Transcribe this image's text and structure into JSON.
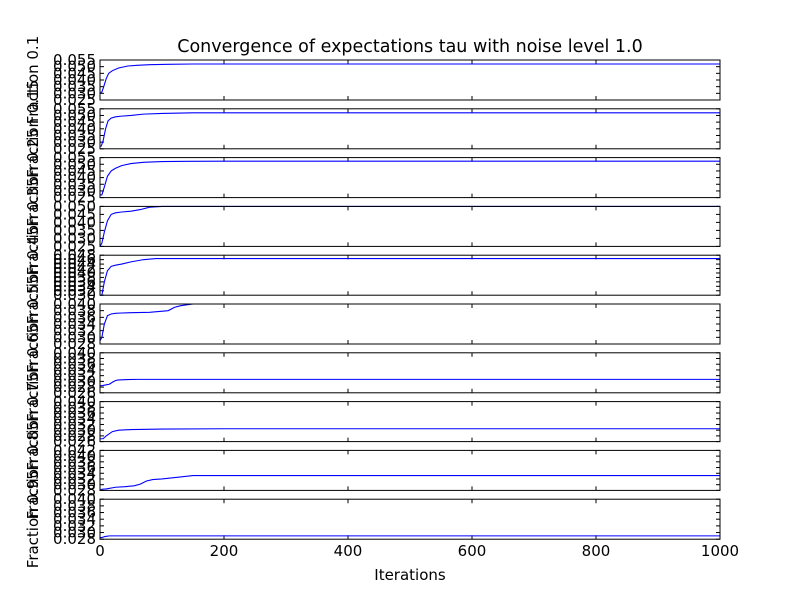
{
  "chart_data": {
    "type": "line",
    "title": "Convergence of expectations tau with noise level 1.0",
    "xlabel": "Iterations",
    "xlim": [
      0,
      1000
    ],
    "xticks": [
      0,
      200,
      400,
      600,
      800,
      1000
    ],
    "xtick_labels": [
      "0",
      "200",
      "400",
      "600",
      "800",
      "1000"
    ],
    "panels": [
      {
        "ylabel": "Fraction 0.1",
        "ylim": [
          0.025,
          0.055
        ],
        "yticks": [
          0.025,
          0.03,
          0.035,
          0.04,
          0.045,
          0.05,
          0.055
        ],
        "ytick_labels": [
          "0.025",
          "0.030",
          "0.035",
          "0.040",
          "0.045",
          "0.050",
          "0.055"
        ],
        "x": [
          0,
          3,
          6,
          10,
          14,
          20,
          30,
          45,
          60,
          80,
          110,
          150,
          250,
          1000
        ],
        "y": [
          0.03,
          0.031,
          0.035,
          0.041,
          0.045,
          0.047,
          0.049,
          0.0505,
          0.051,
          0.0515,
          0.0518,
          0.052,
          0.052,
          0.052
        ]
      },
      {
        "ylabel": "Fraction 0.15",
        "ylim": [
          0.025,
          0.055
        ],
        "yticks": [
          0.025,
          0.03,
          0.035,
          0.04,
          0.045,
          0.05,
          0.055
        ],
        "ytick_labels": [
          "0.025",
          "0.030",
          "0.035",
          "0.040",
          "0.045",
          "0.050",
          "0.055"
        ],
        "x": [
          0,
          2,
          5,
          9,
          13,
          18,
          25,
          35,
          50,
          70,
          100,
          150,
          250,
          1000
        ],
        "y": [
          0.027,
          0.027,
          0.031,
          0.04,
          0.046,
          0.048,
          0.049,
          0.0495,
          0.05,
          0.051,
          0.0515,
          0.052,
          0.052,
          0.052
        ]
      },
      {
        "ylabel": "Fraction 0.25",
        "ylim": [
          0.025,
          0.055
        ],
        "yticks": [
          0.025,
          0.03,
          0.035,
          0.04,
          0.045,
          0.05,
          0.055
        ],
        "ytick_labels": [
          "0.025",
          "0.030",
          "0.035",
          "0.040",
          "0.045",
          "0.050",
          "0.055"
        ],
        "x": [
          0,
          3,
          7,
          12,
          18,
          25,
          35,
          50,
          70,
          100,
          140,
          200,
          1000
        ],
        "y": [
          0.027,
          0.027,
          0.033,
          0.041,
          0.045,
          0.047,
          0.049,
          0.0505,
          0.0515,
          0.052,
          0.0522,
          0.0523,
          0.0523
        ]
      },
      {
        "ylabel": "Fraction 0.35",
        "ylim": [
          0.025,
          0.05
        ],
        "yticks": [
          0.025,
          0.03,
          0.035,
          0.04,
          0.045,
          0.05
        ],
        "ytick_labels": [
          "0.025",
          "0.030",
          "0.035",
          "0.040",
          "0.045",
          "0.050"
        ],
        "x": [
          0,
          3,
          7,
          12,
          18,
          25,
          35,
          50,
          65,
          80,
          100,
          150,
          1000
        ],
        "y": [
          0.025,
          0.027,
          0.034,
          0.041,
          0.045,
          0.046,
          0.0465,
          0.047,
          0.048,
          0.0495,
          0.05,
          0.05,
          0.05
        ]
      },
      {
        "ylabel": "Fraction 0.45",
        "ylim": [
          0.03,
          0.048
        ],
        "yticks": [
          0.03,
          0.032,
          0.034,
          0.036,
          0.038,
          0.04,
          0.042,
          0.044,
          0.046,
          0.048
        ],
        "ytick_labels": [
          "0.030",
          "0.032",
          "0.034",
          "0.036",
          "0.038",
          "0.040",
          "0.042",
          "0.044",
          "0.046",
          "0.048"
        ],
        "x": [
          0,
          3,
          7,
          12,
          18,
          25,
          35,
          50,
          70,
          90,
          120,
          200,
          1000
        ],
        "y": [
          0.03,
          0.03,
          0.036,
          0.041,
          0.043,
          0.0435,
          0.044,
          0.045,
          0.046,
          0.0465,
          0.0465,
          0.0465,
          0.0465
        ]
      },
      {
        "ylabel": "Fraction 0.55",
        "ylim": [
          0.028,
          0.04
        ],
        "yticks": [
          0.028,
          0.03,
          0.032,
          0.034,
          0.036,
          0.038,
          0.04
        ],
        "ytick_labels": [
          "0.028",
          "0.030",
          "0.032",
          "0.034",
          "0.036",
          "0.038",
          "0.040"
        ],
        "x": [
          0,
          3,
          7,
          12,
          18,
          25,
          35,
          50,
          80,
          110,
          120,
          130,
          150,
          200,
          1000
        ],
        "y": [
          0.029,
          0.03,
          0.034,
          0.0365,
          0.037,
          0.0372,
          0.0373,
          0.0374,
          0.0375,
          0.038,
          0.039,
          0.0395,
          0.04,
          0.04,
          0.04
        ]
      },
      {
        "ylabel": "Fraction 0.65",
        "ylim": [
          0.026,
          0.04
        ],
        "yticks": [
          0.026,
          0.028,
          0.03,
          0.032,
          0.034,
          0.036,
          0.038,
          0.04
        ],
        "ytick_labels": [
          "0.026",
          "0.028",
          "0.030",
          "0.032",
          "0.034",
          "0.036",
          "0.038",
          "0.040"
        ],
        "x": [
          0,
          3,
          8,
          15,
          20,
          25,
          30,
          40,
          60,
          1000
        ],
        "y": [
          0.0285,
          0.0285,
          0.0287,
          0.029,
          0.0297,
          0.0303,
          0.0305,
          0.0306,
          0.0307,
          0.0307
        ]
      },
      {
        "ylabel": "Fraction 0.75",
        "ylim": [
          0.026,
          0.04
        ],
        "yticks": [
          0.026,
          0.028,
          0.03,
          0.032,
          0.034,
          0.036,
          0.038,
          0.04
        ],
        "ytick_labels": [
          "0.026",
          "0.028",
          "0.030",
          "0.032",
          "0.034",
          "0.036",
          "0.038",
          "0.040"
        ],
        "x": [
          0,
          5,
          10,
          20,
          30,
          50,
          100,
          200,
          400,
          1000
        ],
        "y": [
          0.027,
          0.027,
          0.028,
          0.0295,
          0.03,
          0.0302,
          0.0304,
          0.0305,
          0.0305,
          0.0305
        ]
      },
      {
        "ylabel": "Fraction 0.85",
        "ylim": [
          0.028,
          0.042
        ],
        "yticks": [
          0.028,
          0.03,
          0.032,
          0.034,
          0.036,
          0.038,
          0.04,
          0.042
        ],
        "ytick_labels": [
          "0.028",
          "0.030",
          "0.032",
          "0.034",
          "0.036",
          "0.038",
          "0.040",
          "0.042"
        ],
        "x": [
          0,
          3,
          10,
          25,
          40,
          55,
          65,
          75,
          85,
          100,
          130,
          150,
          200,
          1000
        ],
        "y": [
          0.028,
          0.0284,
          0.0285,
          0.0291,
          0.0293,
          0.0296,
          0.0302,
          0.0313,
          0.0318,
          0.032,
          0.0327,
          0.0332,
          0.0332,
          0.0332
        ]
      },
      {
        "ylabel": "Fraction 0.95",
        "ylim": [
          0.028,
          0.04
        ],
        "yticks": [
          0.028,
          0.03,
          0.032,
          0.034,
          0.036,
          0.038,
          0.04
        ],
        "ytick_labels": [
          "0.028",
          "0.030",
          "0.032",
          "0.034",
          "0.036",
          "0.038",
          "0.040"
        ],
        "x": [
          0,
          3,
          8,
          15,
          25,
          1000
        ],
        "y": [
          0.0285,
          0.0285,
          0.0288,
          0.029,
          0.029,
          0.029
        ]
      }
    ]
  }
}
